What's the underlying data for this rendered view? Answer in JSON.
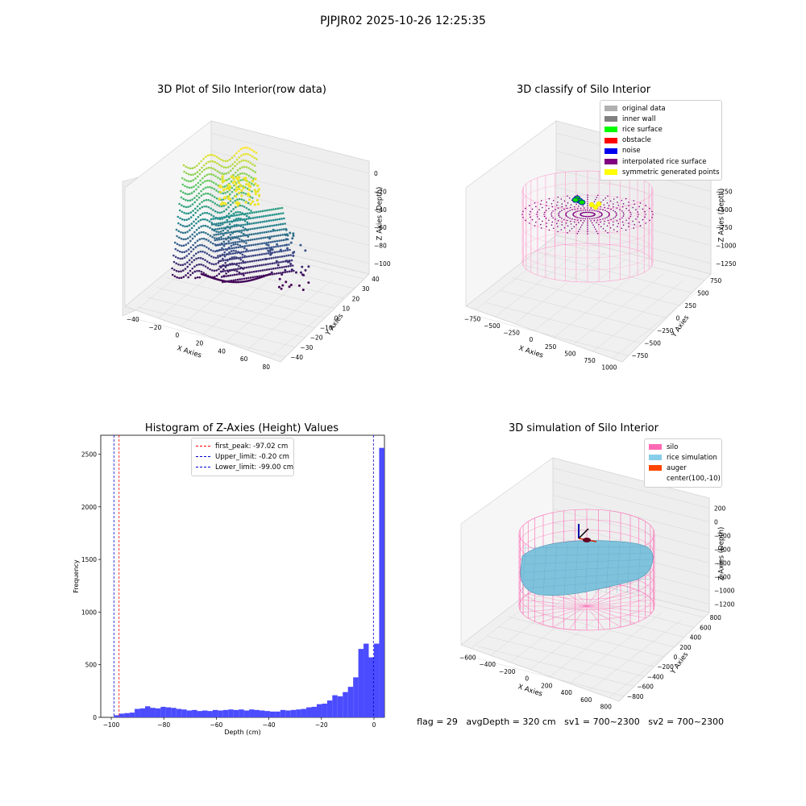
{
  "figure": {
    "suptitle": "PJPJR02 2025-10-26 12:25:35",
    "footer": {
      "flag": "flag = 29",
      "avg": "avgDepth = 320 cm",
      "sv1": "sv1 = 700~2300",
      "sv2": "sv2 = 700~2300"
    }
  },
  "chart_data": [
    {
      "type": "scatter",
      "projection": "3d",
      "title": "3D Plot of Silo Interior(row data)",
      "xlabel": "X Axies",
      "ylabel": "Y Axies",
      "zlabel": "Z Axies (Depth)",
      "xticks": [
        "−40",
        "−20",
        "0",
        "20",
        "40",
        "60",
        "80"
      ],
      "yticks": [
        "−40",
        "−30",
        "−20",
        "−10",
        "0",
        "10",
        "20",
        "30",
        "40"
      ],
      "zticks": [
        "0",
        "−20",
        "−40",
        "−60",
        "−80",
        "−100"
      ],
      "zlim": [
        -105,
        0
      ],
      "colormap": "viridis"
    },
    {
      "type": "scatter",
      "projection": "3d",
      "title": "3D classify of Silo Interior",
      "xlabel": "X Axies",
      "ylabel": "Y Axies",
      "zlabel": "Z Axies (Depth)",
      "xticks": [
        "−750",
        "−500",
        "−250",
        "0",
        "250",
        "500",
        "750",
        "1000"
      ],
      "yticks": [
        "−750",
        "−500",
        "−250",
        "0",
        "250",
        "500",
        "750"
      ],
      "zticks": [
        "0",
        "−250",
        "−500",
        "−750",
        "−1000",
        "−1250"
      ],
      "legend": {
        "position": "upper right",
        "entries": [
          {
            "label": "original data",
            "color": "#b0b0b0"
          },
          {
            "label": "inner wall",
            "color": "#808080"
          },
          {
            "label": "rice surface",
            "color": "#00ff00"
          },
          {
            "label": "obstacle",
            "color": "#ff0000"
          },
          {
            "label": "noise",
            "color": "#0000ee"
          },
          {
            "label": "interpolated rice surface",
            "color": "#800080"
          },
          {
            "label": "symmetric generated points",
            "color": "#ffff00"
          }
        ]
      }
    },
    {
      "type": "bar",
      "title": "Histogram of Z-Axies (Height) Values",
      "xlabel": "Depth (cm)",
      "ylabel": "Frequency",
      "xlim": [
        -104,
        4
      ],
      "ylim": [
        0,
        2680
      ],
      "xticks": [
        -100,
        -80,
        -60,
        -40,
        -20,
        0
      ],
      "xtick_labels": [
        "−100",
        "−80",
        "−60",
        "−40",
        "−20",
        "0"
      ],
      "yticks": [
        0,
        500,
        1000,
        1500,
        2000,
        2500
      ],
      "bar_color": "#4b4bff",
      "bin_start": -99.0,
      "bin_width": 1.98,
      "values": [
        20,
        35,
        40,
        45,
        80,
        85,
        105,
        90,
        85,
        100,
        95,
        90,
        80,
        75,
        65,
        70,
        60,
        65,
        60,
        70,
        65,
        70,
        75,
        70,
        75,
        65,
        75,
        70,
        65,
        60,
        55,
        55,
        70,
        65,
        70,
        75,
        80,
        95,
        100,
        125,
        130,
        160,
        210,
        200,
        240,
        290,
        380,
        650,
        700,
        570,
        700,
        2560
      ],
      "vlines": [
        {
          "x": -97.02,
          "color": "#ff0000",
          "label": "first_peak: -97.02 cm"
        },
        {
          "x": -0.2,
          "color": "#0000cc",
          "label": "Upper_limit: -0.20 cm"
        },
        {
          "x": -99.0,
          "color": "#0000cc",
          "label": "Lower_limit: -99.00 cm"
        }
      ],
      "legend": {
        "position": "upper center"
      }
    },
    {
      "type": "area",
      "projection": "3d",
      "title": "3D simulation of Silo Interior",
      "xlabel": "X Axies",
      "ylabel": "Y Axies",
      "zlabel": "Z Axies (Depth)",
      "xticks": [
        "−600",
        "−400",
        "−200",
        "0",
        "200",
        "400",
        "600",
        "800"
      ],
      "yticks": [
        "−800",
        "−600",
        "−400",
        "−200",
        "0",
        "200",
        "400",
        "600",
        "800"
      ],
      "zticks": [
        "200",
        "0",
        "−200",
        "−400",
        "−600",
        "−800",
        "−1000",
        "−1200"
      ],
      "legend": {
        "position": "upper right",
        "entries": [
          {
            "label": "silo",
            "color": "#ff69b4"
          },
          {
            "label": "rice simulation",
            "color": "#87ceeb"
          },
          {
            "label": "auger",
            "color": "#ff4500"
          },
          {
            "label": "center(100,-10)",
            "color": ""
          }
        ]
      }
    }
  ]
}
